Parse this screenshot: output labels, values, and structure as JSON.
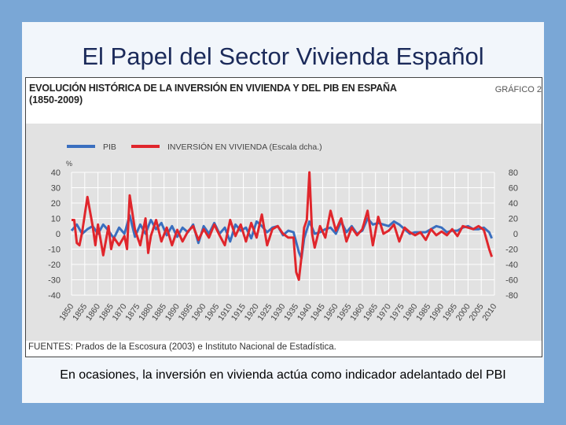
{
  "slide": {
    "title": "El Papel del Sector Vivienda Español",
    "caption": "En ocasiones, la inversión en vivienda actúa como indicador adelantado del PBI"
  },
  "figure": {
    "title": "EVOLUCIÓN HISTÓRICA DE LA INVERSIÓN EN VIVIENDA Y DEL PIB EN ESPAÑA",
    "subtitle": "(1850-2009)",
    "label": "GRÁFICO 2",
    "source": "FUENTES: Prados de la Escosura (2003) e Instituto Nacional de Estadística."
  },
  "colors": {
    "pib": "#3a6fbf",
    "inversion": "#e0262c",
    "plot_bg": "#e2e2e2"
  },
  "chart_data": {
    "type": "line",
    "xlim": [
      1850,
      2010
    ],
    "x_ticks": [
      1850,
      1855,
      1860,
      1865,
      1870,
      1875,
      1880,
      1885,
      1890,
      1895,
      1900,
      1905,
      1910,
      1915,
      1920,
      1925,
      1930,
      1935,
      1940,
      1945,
      1950,
      1955,
      1960,
      1965,
      1970,
      1975,
      1980,
      1985,
      1990,
      1995,
      2000,
      2005,
      2010
    ],
    "y_left": {
      "unit": "%",
      "lim": [
        -40,
        40
      ],
      "ticks": [
        40,
        30,
        20,
        10,
        0,
        -10,
        -20,
        -30,
        -40
      ]
    },
    "y_right": {
      "lim": [
        -80,
        80
      ],
      "ticks": [
        80,
        60,
        40,
        20,
        0,
        -20,
        -40,
        -60,
        -80
      ]
    },
    "legend": {
      "placement": "top-left"
    },
    "series": [
      {
        "name": "PIB",
        "axis": "left",
        "color": "#3a6fbf",
        "x": [
          1850,
          1852,
          1854,
          1856,
          1858,
          1860,
          1862,
          1864,
          1866,
          1868,
          1870,
          1872,
          1874,
          1876,
          1878,
          1880,
          1882,
          1884,
          1886,
          1888,
          1890,
          1892,
          1894,
          1896,
          1898,
          1900,
          1902,
          1904,
          1906,
          1908,
          1910,
          1912,
          1914,
          1916,
          1918,
          1920,
          1922,
          1924,
          1926,
          1928,
          1930,
          1932,
          1934,
          1936,
          1937,
          1938,
          1940,
          1942,
          1944,
          1946,
          1948,
          1950,
          1952,
          1954,
          1956,
          1958,
          1960,
          1962,
          1964,
          1966,
          1968,
          1970,
          1972,
          1974,
          1976,
          1978,
          1980,
          1982,
          1984,
          1986,
          1988,
          1990,
          1992,
          1994,
          1996,
          1998,
          2000,
          2002,
          2004,
          2006,
          2008,
          2009
        ],
        "values": [
          2,
          6,
          0,
          3,
          5,
          0,
          6,
          2,
          -3,
          4,
          0,
          12,
          -2,
          6,
          0,
          9,
          3,
          7,
          -1,
          5,
          -2,
          4,
          1,
          6,
          -6,
          5,
          0,
          7,
          0,
          4,
          -5,
          6,
          2,
          4,
          -3,
          8,
          5,
          1,
          4,
          5,
          -1,
          2,
          1,
          -12,
          -16,
          -3,
          8,
          0,
          1,
          3,
          4,
          0,
          8,
          1,
          5,
          0,
          2,
          10,
          6,
          7,
          6,
          5,
          8,
          6,
          3,
          0,
          1,
          1,
          1,
          3,
          5,
          4,
          1,
          2,
          2,
          4,
          5,
          3,
          3,
          4,
          1,
          -3
        ]
      },
      {
        "name": "INVERSIÓN EN VIVIENDA (Escala dcha.)",
        "axis": "right",
        "color": "#e0262c",
        "x": [
          1850,
          1851,
          1852,
          1853,
          1854,
          1856,
          1858,
          1859,
          1860,
          1861,
          1862,
          1864,
          1865,
          1866,
          1868,
          1870,
          1871,
          1872,
          1874,
          1876,
          1878,
          1879,
          1880,
          1882,
          1884,
          1886,
          1888,
          1890,
          1892,
          1894,
          1896,
          1898,
          1900,
          1902,
          1904,
          1906,
          1908,
          1910,
          1912,
          1914,
          1916,
          1918,
          1920,
          1922,
          1924,
          1926,
          1928,
          1930,
          1932,
          1934,
          1935,
          1936,
          1937,
          1938,
          1939,
          1940,
          1941,
          1942,
          1944,
          1946,
          1948,
          1950,
          1952,
          1954,
          1956,
          1958,
          1960,
          1962,
          1964,
          1966,
          1968,
          1970,
          1972,
          1974,
          1976,
          1978,
          1980,
          1982,
          1984,
          1986,
          1988,
          1990,
          1992,
          1994,
          1996,
          1998,
          2000,
          2002,
          2004,
          2006,
          2008,
          2009
        ],
        "values": [
          18,
          18,
          -12,
          -15,
          2,
          48,
          10,
          -15,
          12,
          -8,
          -28,
          10,
          -20,
          -5,
          -15,
          -3,
          -20,
          50,
          5,
          -15,
          20,
          -25,
          -3,
          18,
          -10,
          8,
          -15,
          5,
          -10,
          3,
          10,
          -8,
          6,
          -5,
          12,
          -2,
          -15,
          18,
          -3,
          12,
          -10,
          14,
          -5,
          25,
          -15,
          6,
          10,
          0,
          -5,
          -5,
          -50,
          -60,
          -30,
          8,
          18,
          80,
          0,
          -18,
          10,
          -5,
          30,
          4,
          20,
          -10,
          8,
          -2,
          6,
          30,
          -15,
          22,
          0,
          4,
          12,
          -10,
          8,
          2,
          -2,
          2,
          -8,
          6,
          -2,
          3,
          -2,
          6,
          -3,
          10,
          8,
          6,
          10,
          5,
          -20,
          -30
        ]
      }
    ]
  }
}
